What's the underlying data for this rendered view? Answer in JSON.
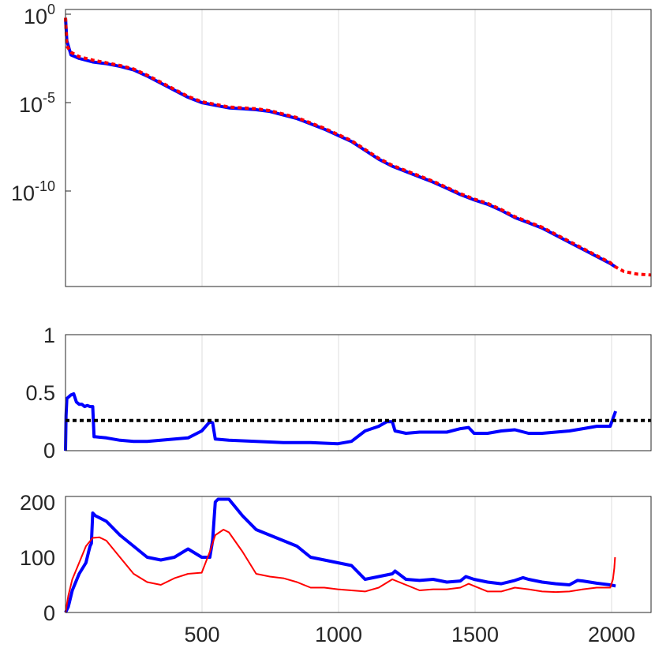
{
  "chart_data": [
    {
      "type": "line",
      "yscale": "log",
      "xlim": [
        0,
        2150
      ],
      "ylim_exponent": [
        -19,
        0
      ],
      "y_ticks": [
        {
          "base": "10",
          "exp": "0",
          "value_exp": 0
        },
        {
          "base": "10",
          "exp": "-5",
          "value_exp": -5
        },
        {
          "base": "10",
          "exp": "-10",
          "value_exp": -10
        }
      ],
      "x_grid": [
        500,
        1000,
        1500,
        2000
      ],
      "grid": "vertical",
      "series": [
        {
          "color": "#0000ff",
          "style": "solid",
          "x": [
            0,
            5,
            20,
            50,
            100,
            150,
            200,
            250,
            300,
            350,
            400,
            450,
            500,
            550,
            600,
            650,
            700,
            750,
            800,
            850,
            900,
            950,
            1000,
            1050,
            1100,
            1150,
            1200,
            1250,
            1300,
            1350,
            1400,
            1450,
            1500,
            1550,
            1600,
            1650,
            1700,
            1750,
            1800,
            1850,
            1900,
            1950,
            2000,
            2020
          ],
          "y_log10": [
            -0.2,
            -1.5,
            -2.3,
            -2.5,
            -2.7,
            -2.8,
            -2.95,
            -3.15,
            -3.5,
            -3.9,
            -4.3,
            -4.7,
            -5.0,
            -5.15,
            -5.3,
            -5.35,
            -5.4,
            -5.5,
            -5.7,
            -5.9,
            -6.2,
            -6.5,
            -6.85,
            -7.2,
            -7.7,
            -8.2,
            -8.6,
            -8.9,
            -9.2,
            -9.5,
            -9.85,
            -10.2,
            -10.5,
            -10.75,
            -11.1,
            -11.5,
            -11.8,
            -12.1,
            -12.5,
            -12.9,
            -13.3,
            -13.7,
            -14.1,
            -14.3
          ]
        },
        {
          "color": "#ff0000",
          "style": "dotted",
          "x": [
            0,
            5,
            20,
            50,
            100,
            150,
            200,
            250,
            300,
            350,
            400,
            450,
            500,
            550,
            600,
            650,
            700,
            750,
            800,
            850,
            900,
            950,
            1000,
            1050,
            1100,
            1150,
            1200,
            1250,
            1300,
            1350,
            1400,
            1450,
            1500,
            1550,
            1600,
            1650,
            1700,
            1750,
            1800,
            1850,
            1900,
            1950,
            2000,
            2020,
            2050,
            2100,
            2150
          ],
          "y_log10": [
            -0.2,
            -1.8,
            -2.15,
            -2.4,
            -2.6,
            -2.75,
            -2.9,
            -3.1,
            -3.45,
            -3.85,
            -4.25,
            -4.65,
            -4.95,
            -5.1,
            -5.25,
            -5.3,
            -5.35,
            -5.45,
            -5.65,
            -5.85,
            -6.15,
            -6.45,
            -6.8,
            -7.15,
            -7.65,
            -8.15,
            -8.55,
            -8.85,
            -9.15,
            -9.45,
            -9.8,
            -10.15,
            -10.45,
            -10.7,
            -11.05,
            -11.45,
            -11.75,
            -12.05,
            -12.45,
            -12.85,
            -13.25,
            -13.65,
            -14.05,
            -14.3,
            -14.55,
            -14.7,
            -14.75
          ]
        }
      ]
    },
    {
      "type": "line",
      "xlim": [
        0,
        2150
      ],
      "ylim": [
        0,
        1
      ],
      "y_ticks": [
        "0",
        "0.5",
        "1"
      ],
      "x_grid": [
        500,
        1000,
        1500,
        2000
      ],
      "grid": "vertical",
      "series": [
        {
          "color": "#0000ff",
          "style": "solid",
          "x": [
            0,
            2,
            5,
            10,
            20,
            30,
            40,
            50,
            60,
            70,
            80,
            90,
            100,
            105,
            110,
            150,
            200,
            250,
            300,
            350,
            400,
            450,
            500,
            530,
            540,
            550,
            600,
            700,
            800,
            900,
            1000,
            1050,
            1100,
            1150,
            1180,
            1200,
            1210,
            1250,
            1300,
            1350,
            1400,
            1450,
            1480,
            1500,
            1550,
            1600,
            1650,
            1700,
            1750,
            1800,
            1850,
            1900,
            1950,
            2000,
            2020
          ],
          "y": [
            0,
            0.3,
            0.45,
            0.46,
            0.48,
            0.49,
            0.42,
            0.4,
            0.4,
            0.38,
            0.39,
            0.38,
            0.38,
            0.12,
            0.12,
            0.11,
            0.09,
            0.08,
            0.08,
            0.09,
            0.1,
            0.11,
            0.17,
            0.25,
            0.24,
            0.1,
            0.09,
            0.08,
            0.07,
            0.07,
            0.06,
            0.08,
            0.17,
            0.21,
            0.25,
            0.25,
            0.17,
            0.15,
            0.16,
            0.16,
            0.16,
            0.19,
            0.2,
            0.15,
            0.15,
            0.17,
            0.18,
            0.15,
            0.15,
            0.16,
            0.17,
            0.19,
            0.21,
            0.21,
            0.34
          ]
        },
        {
          "color": "#000000",
          "style": "dotted",
          "x": [
            0,
            2150
          ],
          "y": [
            0.26,
            0.26
          ]
        }
      ]
    },
    {
      "type": "line",
      "xlim": [
        0,
        2150
      ],
      "ylim": [
        0,
        210
      ],
      "y_ticks": [
        "0",
        "100",
        "200"
      ],
      "x_ticks": [
        "500",
        "1000",
        "1500",
        "2000"
      ],
      "x_tick_values": [
        500,
        1000,
        1500,
        2000
      ],
      "grid": "vertical",
      "series": [
        {
          "color": "#0000ff",
          "style": "solid",
          "x": [
            0,
            10,
            25,
            50,
            75,
            85,
            90,
            95,
            100,
            110,
            150,
            200,
            250,
            300,
            350,
            400,
            450,
            500,
            530,
            540,
            550,
            560,
            580,
            600,
            650,
            700,
            750,
            800,
            850,
            900,
            950,
            1000,
            1050,
            1100,
            1150,
            1200,
            1210,
            1250,
            1300,
            1350,
            1400,
            1450,
            1470,
            1500,
            1550,
            1600,
            1650,
            1680,
            1700,
            1750,
            1800,
            1850,
            1880,
            1900,
            1950,
            2000,
            2020
          ],
          "y": [
            0,
            10,
            40,
            70,
            90,
            110,
            120,
            125,
            180,
            175,
            165,
            140,
            120,
            100,
            95,
            100,
            115,
            100,
            100,
            130,
            200,
            205,
            205,
            205,
            175,
            150,
            140,
            130,
            120,
            100,
            95,
            90,
            85,
            60,
            65,
            70,
            75,
            60,
            58,
            60,
            55,
            57,
            65,
            60,
            55,
            52,
            58,
            63,
            60,
            55,
            52,
            50,
            58,
            57,
            53,
            50,
            48
          ]
        },
        {
          "color": "#ff0000",
          "style": "solid",
          "x": [
            0,
            10,
            25,
            50,
            75,
            100,
            125,
            150,
            200,
            250,
            300,
            350,
            400,
            450,
            500,
            530,
            550,
            580,
            600,
            650,
            700,
            750,
            800,
            850,
            900,
            950,
            1000,
            1050,
            1100,
            1150,
            1200,
            1250,
            1300,
            1350,
            1400,
            1450,
            1480,
            1500,
            1550,
            1600,
            1650,
            1700,
            1750,
            1800,
            1850,
            1900,
            1950,
            2000,
            2010,
            2015,
            2018
          ],
          "y": [
            0,
            30,
            60,
            90,
            120,
            135,
            136,
            130,
            100,
            70,
            55,
            50,
            62,
            70,
            72,
            110,
            140,
            150,
            145,
            110,
            70,
            65,
            62,
            55,
            45,
            45,
            42,
            40,
            38,
            45,
            60,
            50,
            40,
            42,
            42,
            45,
            52,
            48,
            38,
            38,
            45,
            42,
            38,
            37,
            38,
            42,
            45,
            45,
            60,
            80,
            100
          ]
        }
      ]
    }
  ]
}
